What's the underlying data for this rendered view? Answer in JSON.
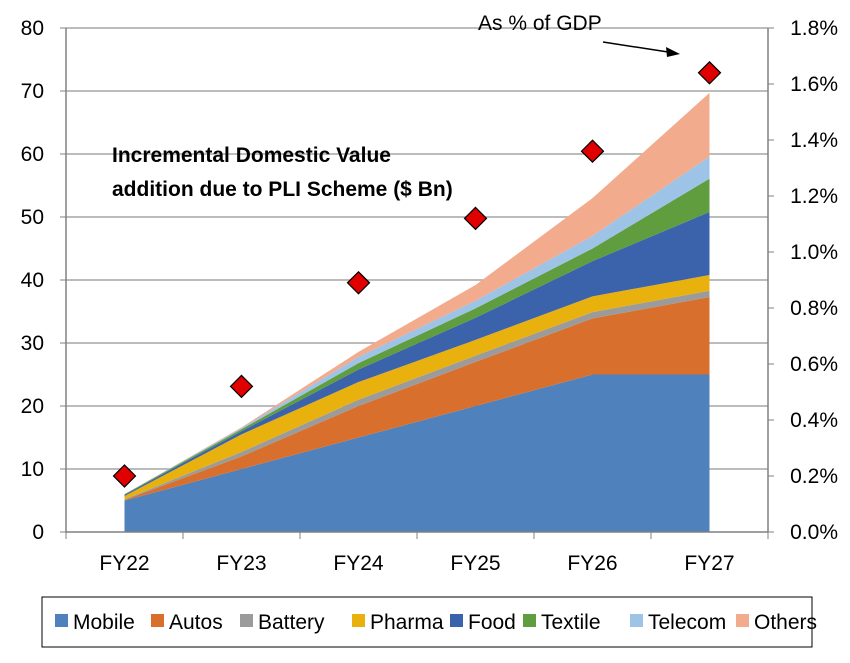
{
  "chart_data": {
    "type": "area",
    "title": "Incremental Domestic Value addition due to PLI Scheme ($ Bn)",
    "title_lines": [
      "Incremental Domestic Value",
      "addition due to PLI Scheme ($ Bn)"
    ],
    "stacked": true,
    "categories": [
      "FY22",
      "FY23",
      "FY24",
      "FY25",
      "FY26",
      "FY27"
    ],
    "ylim": [
      0,
      80
    ],
    "y_ticks": [
      "0",
      "10",
      "20",
      "30",
      "40",
      "50",
      "60",
      "70",
      "80"
    ],
    "y2lim": [
      0,
      1.8
    ],
    "y2_ticks": [
      "0.0%",
      "0.2%",
      "0.4%",
      "0.6%",
      "0.8%",
      "1.0%",
      "1.2%",
      "1.4%",
      "1.6%",
      "1.8%"
    ],
    "grid": true,
    "legend_position": "bottom",
    "series": [
      {
        "name": "Mobile",
        "color": "#4f81bd",
        "values": [
          5.0,
          10.0,
          15.0,
          20.0,
          25.0,
          25.0
        ]
      },
      {
        "name": "Autos",
        "color": "#d86f2c",
        "values": [
          0.1,
          2.0,
          5.0,
          7.0,
          8.9,
          12.3
        ]
      },
      {
        "name": "Battery",
        "color": "#9b9b9b",
        "values": [
          0.1,
          0.7,
          1.0,
          1.0,
          1.0,
          1.0
        ]
      },
      {
        "name": "Pharma",
        "color": "#e8b10d",
        "values": [
          0.5,
          2.8,
          2.8,
          2.5,
          2.5,
          2.5
        ]
      },
      {
        "name": "Food",
        "color": "#3b63ac",
        "values": [
          0.2,
          0.5,
          2.0,
          3.5,
          5.6,
          10.0
        ]
      },
      {
        "name": "Textile",
        "color": "#5f9d3e",
        "values": [
          0.1,
          0.3,
          1.0,
          1.5,
          2.0,
          5.3
        ]
      },
      {
        "name": "Telecom",
        "color": "#9dc3e6",
        "values": [
          0.0,
          0.2,
          1.0,
          1.2,
          2.0,
          3.5
        ]
      },
      {
        "name": "Others",
        "color": "#f2ab8c",
        "values": [
          0.0,
          0.1,
          0.8,
          2.5,
          6.0,
          10.1
        ]
      }
    ],
    "gdp_marker": {
      "name": "As % of GDP",
      "color": "#e00000",
      "values": [
        0.2,
        0.52,
        0.89,
        1.12,
        1.36,
        1.64
      ]
    },
    "annotation": "As % of GDP"
  }
}
